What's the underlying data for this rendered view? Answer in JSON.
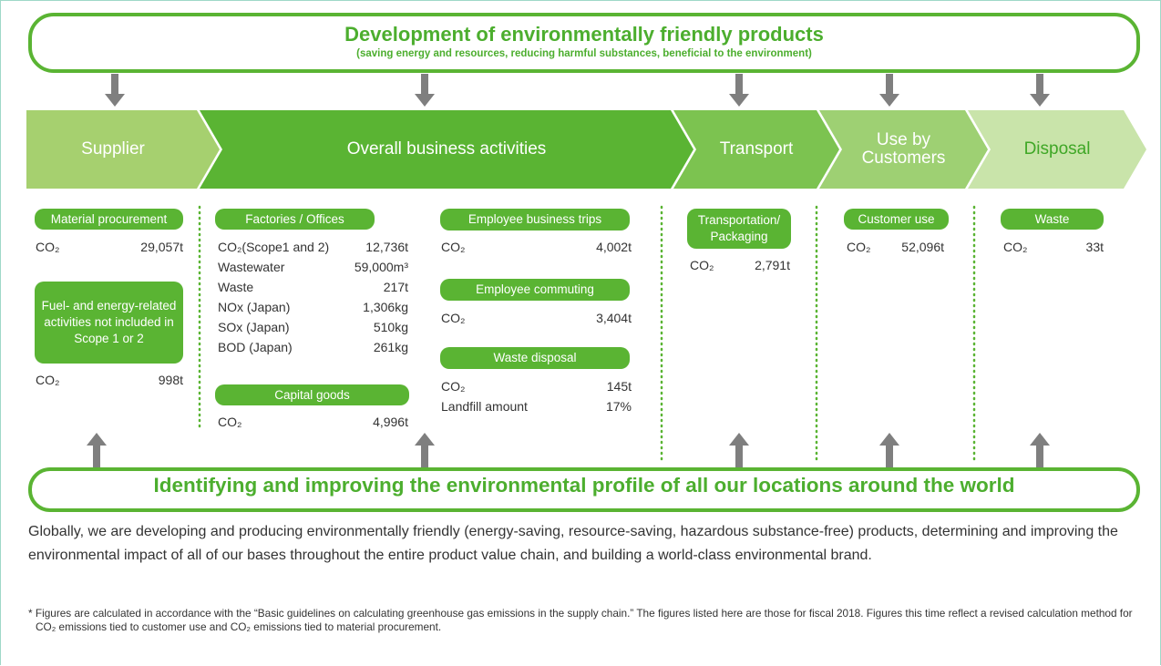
{
  "top_banner": {
    "title": "Development of environmentally friendly products",
    "subtitle": "(saving energy and resources, reducing harmful substances, beneficial to the environment)"
  },
  "stages": [
    "Supplier",
    "Overall business activities",
    "Transport",
    "Use by Customers",
    "Disposal"
  ],
  "groups": [
    {
      "label": "Material procurement",
      "rows": [
        [
          "CO₂",
          "29,057t"
        ]
      ]
    },
    {
      "label": "Fuel- and energy-related activities not included in Scope 1 or 2",
      "rows": [
        [
          "CO₂",
          "998t"
        ]
      ]
    },
    {
      "label": "Factories / Offices",
      "rows": [
        [
          "CO₂(Scope1 and 2)",
          "12,736t"
        ],
        [
          "Wastewater",
          "59,000m³"
        ],
        [
          "Waste",
          "217t"
        ],
        [
          "NOx (Japan)",
          "1,306kg"
        ],
        [
          "SOx (Japan)",
          "510kg"
        ],
        [
          "BOD (Japan)",
          "261kg"
        ]
      ]
    },
    {
      "label": "Capital goods",
      "rows": [
        [
          "CO₂",
          "4,996t"
        ]
      ]
    },
    {
      "label": "Employee business trips",
      "rows": [
        [
          "CO₂",
          "4,002t"
        ]
      ]
    },
    {
      "label": "Employee commuting",
      "rows": [
        [
          "CO₂",
          "3,404t"
        ]
      ]
    },
    {
      "label": "Waste disposal",
      "rows": [
        [
          "CO₂",
          "145t"
        ],
        [
          "Landfill amount",
          "17%"
        ]
      ]
    },
    {
      "label": "Transportation/ Packaging",
      "rows": [
        [
          "CO₂",
          "2,791t"
        ]
      ]
    },
    {
      "label": "Customer use",
      "rows": [
        [
          "CO₂",
          "52,096t"
        ]
      ]
    },
    {
      "label": "Waste",
      "rows": [
        [
          "CO₂",
          "33t"
        ]
      ]
    }
  ],
  "bottom_banner": "Identifying and improving the environmental profile of all our locations around the world",
  "description": "Globally, we are developing and producing environmentally friendly (energy-saving, resource-saving, hazardous substance-free) products, determining and improving the environmental impact of all of our bases throughout the entire product value chain, and building a world-class environmental brand.",
  "footnote": "* Figures are calculated in accordance with the “Basic guidelines on calculating greenhouse gas emissions in the supply chain.” The figures listed here are those for fiscal 2018. Figures this time reflect a revised calculation method for CO₂ emissions tied to customer use and CO₂ emissions tied to material procurement."
}
